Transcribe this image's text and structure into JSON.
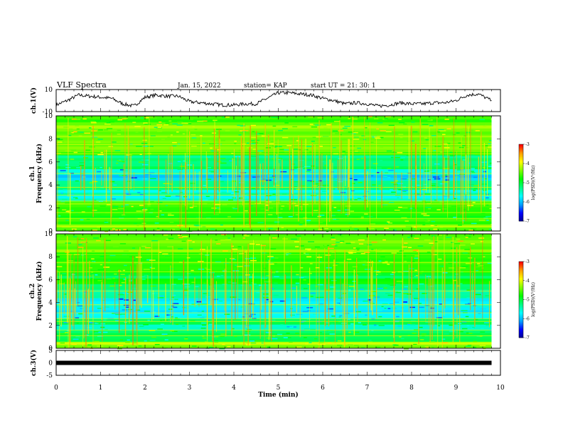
{
  "header": {
    "title": "VLF Spectra",
    "date": "Jan. 15, 2022",
    "station": "station= KAP",
    "start": "start  UT =   21: 30: 1"
  },
  "chart_data": [
    {
      "type": "line",
      "panel": "ch1-waveform",
      "ylabel": "ch.1(V)",
      "ylim": [
        -10,
        10
      ],
      "ytick_labels": [
        "10",
        "-10"
      ],
      "xlim": [
        0,
        10
      ],
      "x": [
        0,
        0.25,
        0.5,
        0.75,
        1,
        1.25,
        1.5,
        1.75,
        2,
        2.25,
        2.5,
        2.75,
        3,
        3.25,
        3.5,
        3.75,
        4,
        4.25,
        4.5,
        4.75,
        5,
        5.25,
        5.5,
        5.75,
        6,
        6.25,
        6.5,
        6.75,
        7,
        7.25,
        7.5,
        7.75,
        8,
        8.25,
        8.5,
        8.75,
        9,
        9.25,
        9.5,
        9.8
      ],
      "y": [
        -4,
        0,
        5,
        4,
        3,
        2,
        -3,
        -5,
        3,
        5,
        4,
        4,
        -1,
        -2,
        -3,
        -4,
        -4,
        -3,
        -3,
        2,
        7,
        7,
        6,
        5,
        2,
        0,
        -3,
        -2,
        -3,
        -5,
        -4,
        -2,
        -3,
        -3,
        -2,
        -2,
        0,
        5,
        6,
        0
      ]
    },
    {
      "type": "heatmap",
      "panel": "ch1-spectrogram",
      "ylabel": "ch.1\nFrequency (kHz)",
      "ylim": [
        0,
        10
      ],
      "xlim": [
        0,
        10
      ],
      "yticks": [
        0,
        2,
        4,
        6,
        8,
        10
      ],
      "bands_khz": [
        {
          "from": 0,
          "to": 0.6,
          "level": -4.4
        },
        {
          "from": 0.6,
          "to": 1.6,
          "level": -4.8
        },
        {
          "from": 1.6,
          "to": 2.6,
          "level": -4.6
        },
        {
          "from": 2.6,
          "to": 3.6,
          "level": -5.4
        },
        {
          "from": 3.6,
          "to": 4.4,
          "level": -5.0
        },
        {
          "from": 4.4,
          "to": 5.4,
          "level": -5.7
        },
        {
          "from": 5.4,
          "to": 6.6,
          "level": -5.1
        },
        {
          "from": 6.6,
          "to": 8.4,
          "level": -4.6
        },
        {
          "from": 8.4,
          "to": 10,
          "level": -4.4
        }
      ],
      "colorbar": {
        "label": "log(PSD)(V²/Hz)",
        "range": [
          -7,
          -3
        ],
        "ticks": [
          "-3",
          "-4",
          "-5",
          "-6",
          "-7"
        ]
      }
    },
    {
      "type": "heatmap",
      "panel": "ch2-spectrogram",
      "ylabel": "ch.2\nFrequency (kHz)",
      "ylim": [
        0,
        10
      ],
      "xlim": [
        0,
        10
      ],
      "yticks": [
        0,
        2,
        4,
        6,
        8,
        10
      ],
      "bands_khz": [
        {
          "from": 0,
          "to": 0.6,
          "level": -4.4
        },
        {
          "from": 0.6,
          "to": 1.6,
          "level": -5.0
        },
        {
          "from": 1.6,
          "to": 2.6,
          "level": -5.3
        },
        {
          "from": 2.6,
          "to": 3.6,
          "level": -5.6
        },
        {
          "from": 3.6,
          "to": 4.4,
          "level": -5.8
        },
        {
          "from": 4.4,
          "to": 5.4,
          "level": -5.2
        },
        {
          "from": 5.4,
          "to": 6.6,
          "level": -4.9
        },
        {
          "from": 6.6,
          "to": 8.4,
          "level": -4.7
        },
        {
          "from": 8.4,
          "to": 10,
          "level": -4.3
        }
      ],
      "colorbar": {
        "label": "log(PSD)(V²/Hz)",
        "range": [
          -7,
          -3
        ],
        "ticks": [
          "-3",
          "-4",
          "-5",
          "-6",
          "-7"
        ]
      }
    },
    {
      "type": "line",
      "panel": "ch3-waveform",
      "ylabel": "ch.3(V)",
      "ylim": [
        -5,
        5
      ],
      "ytick_labels": [
        "5",
        "0",
        "-5"
      ],
      "xlim": [
        0,
        10
      ],
      "x": [
        0,
        9.8
      ],
      "y": [
        0,
        0
      ]
    }
  ],
  "xaxis": {
    "label": "Time (min)",
    "ticks": [
      "0",
      "1",
      "2",
      "3",
      "4",
      "5",
      "6",
      "7",
      "8",
      "9",
      "10"
    ]
  },
  "colors": {
    "colormap": [
      "#000090",
      "#0000ff",
      "#00a0ff",
      "#00ffff",
      "#00ff80",
      "#00ff00",
      "#80ff00",
      "#ffff00",
      "#ffa000",
      "#ff0000",
      "#ffffff"
    ],
    "waveform": "#000000"
  }
}
